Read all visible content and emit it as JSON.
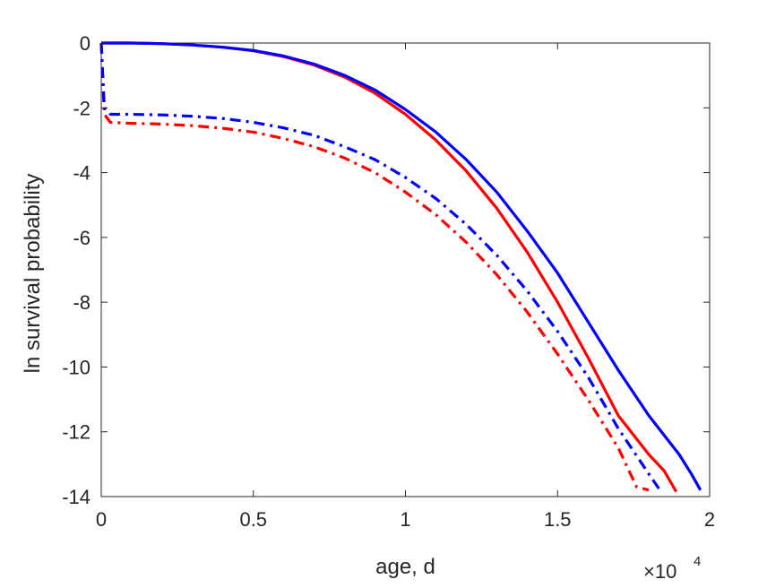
{
  "chart_data": {
    "type": "line",
    "xlabel": "age, d",
    "ylabel": "ln survival probability",
    "x_exponent_label": {
      "base": "×10",
      "exponent": "4"
    },
    "xlim": [
      0,
      20000
    ],
    "ylim": [
      -14,
      0
    ],
    "x_ticks": [
      0,
      5000,
      10000,
      15000,
      20000
    ],
    "x_tick_labels": [
      "0",
      "0.5",
      "1",
      "1.5",
      "2"
    ],
    "y_ticks": [
      0,
      -2,
      -4,
      -6,
      -8,
      -10,
      -12,
      -14
    ],
    "y_tick_labels": [
      "0",
      "-2",
      "-4",
      "-6",
      "-8",
      "-10",
      "-12",
      "-14"
    ],
    "grid": false,
    "series": [
      {
        "color": "#ff0000",
        "style": "solid",
        "x": [
          0,
          1000,
          2000,
          3000,
          4000,
          5000,
          6000,
          7000,
          8000,
          9000,
          10000,
          11000,
          12000,
          13000,
          14000,
          15000,
          16000,
          17000,
          18000,
          18500,
          18900
        ],
        "y": [
          0,
          0,
          -0.02,
          -0.06,
          -0.13,
          -0.24,
          -0.42,
          -0.68,
          -1.05,
          -1.55,
          -2.2,
          -3.0,
          -3.95,
          -5.1,
          -6.45,
          -8.0,
          -9.7,
          -11.5,
          -12.7,
          -13.2,
          -13.85
        ]
      },
      {
        "color": "#0000ff",
        "style": "solid",
        "x": [
          0,
          1000,
          2000,
          3000,
          4000,
          5000,
          6000,
          7000,
          8000,
          9000,
          10000,
          11000,
          12000,
          13000,
          14000,
          15000,
          16000,
          17000,
          18000,
          19000,
          19400,
          19700
        ],
        "y": [
          0,
          0,
          -0.02,
          -0.06,
          -0.13,
          -0.23,
          -0.4,
          -0.65,
          -1.0,
          -1.45,
          -2.05,
          -2.75,
          -3.6,
          -4.6,
          -5.8,
          -7.1,
          -8.6,
          -10.1,
          -11.5,
          -12.7,
          -13.3,
          -13.8
        ]
      },
      {
        "color": "#ff0000",
        "style": "dashdot",
        "x": [
          0,
          100,
          300,
          1000,
          2000,
          3000,
          4000,
          5000,
          6000,
          7000,
          8000,
          9000,
          10000,
          11000,
          12000,
          13000,
          14000,
          15000,
          16000,
          17000,
          17600,
          18000
        ],
        "y": [
          0,
          -2.2,
          -2.45,
          -2.48,
          -2.5,
          -2.55,
          -2.63,
          -2.75,
          -2.95,
          -3.2,
          -3.55,
          -4.0,
          -4.6,
          -5.3,
          -6.15,
          -7.15,
          -8.3,
          -9.6,
          -11.0,
          -12.5,
          -13.7,
          -13.8
        ]
      },
      {
        "color": "#0000ff",
        "style": "dashdot",
        "x": [
          0,
          100,
          300,
          1000,
          2000,
          3000,
          4000,
          5000,
          6000,
          7000,
          8000,
          9000,
          10000,
          11000,
          12000,
          13000,
          14000,
          15000,
          16000,
          17000,
          18000,
          18400
        ],
        "y": [
          0,
          -2.0,
          -2.2,
          -2.2,
          -2.22,
          -2.26,
          -2.33,
          -2.45,
          -2.62,
          -2.85,
          -3.2,
          -3.6,
          -4.15,
          -4.8,
          -5.6,
          -6.55,
          -7.65,
          -8.9,
          -10.3,
          -11.9,
          -13.3,
          -13.85
        ]
      }
    ]
  }
}
